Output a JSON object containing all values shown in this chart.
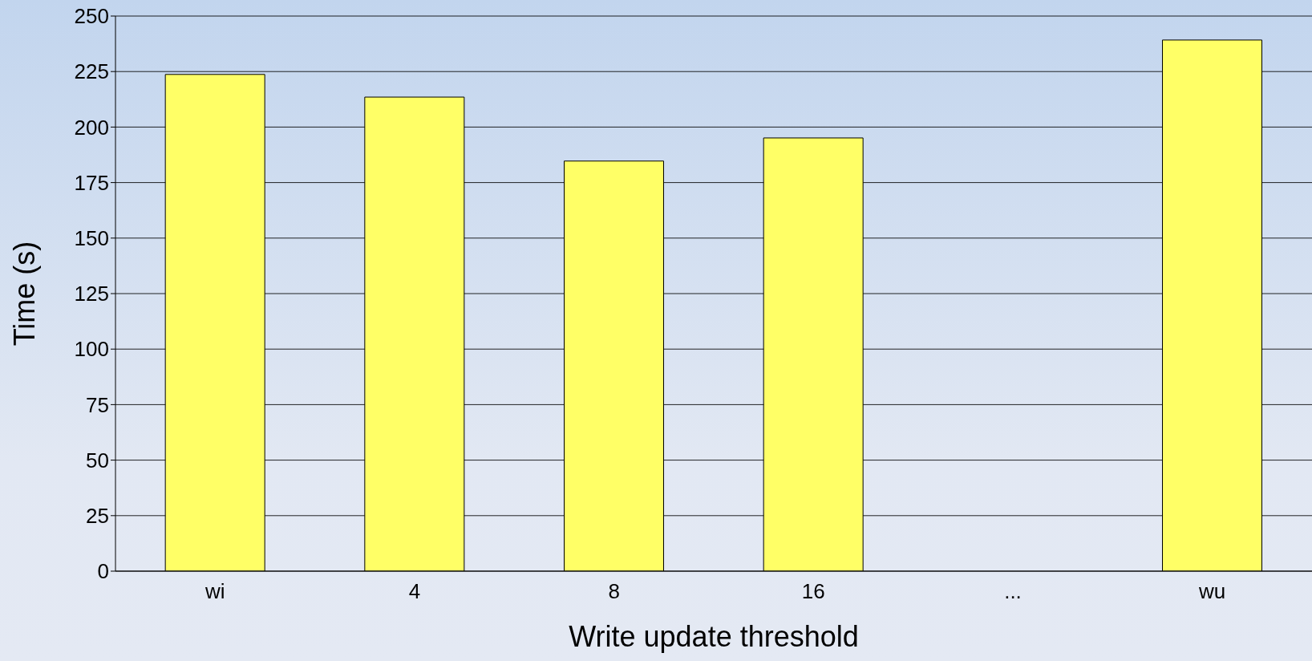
{
  "chart_data": {
    "type": "bar",
    "xlabel": "Write update threshold",
    "ylabel": "Time (s)",
    "categories": [
      "wi",
      "4",
      "8",
      "16",
      "...",
      "wu"
    ],
    "values": [
      223.7,
      213.5,
      184.7,
      195.1,
      0,
      239.2
    ],
    "color": "#ffff66",
    "ylim": [
      0,
      250
    ],
    "yticks": [
      0,
      25,
      50,
      75,
      100,
      125,
      150,
      175,
      200,
      225,
      250
    ],
    "grid": "y"
  }
}
